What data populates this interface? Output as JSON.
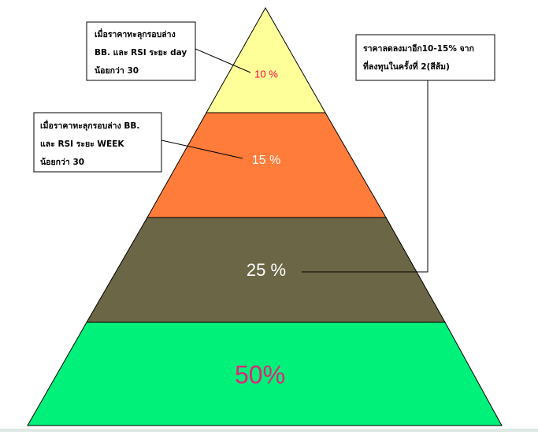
{
  "pyramid": {
    "layers": [
      {
        "label": "10 %"
      },
      {
        "label": "15 %"
      },
      {
        "label": "25 %"
      },
      {
        "label": "50%"
      }
    ]
  },
  "notes": [
    {
      "lines": [
        "เมื่อราคาทะลุกรอบล่าง",
        "BB. และ RSI ระยะ day",
        "น้อยกว่า 30"
      ]
    },
    {
      "lines": [
        "เมื่อราคาทะลุกรอบล่าง BB.",
        "และ RSI ระยะ WEEK",
        "น้อยกว่า 30"
      ]
    },
    {
      "lines": [
        "ราคาลดลงมาอีก10-15% จาก",
        "ที่ลงทุนในครั้งที่ 2(สีส้ม)"
      ]
    }
  ]
}
